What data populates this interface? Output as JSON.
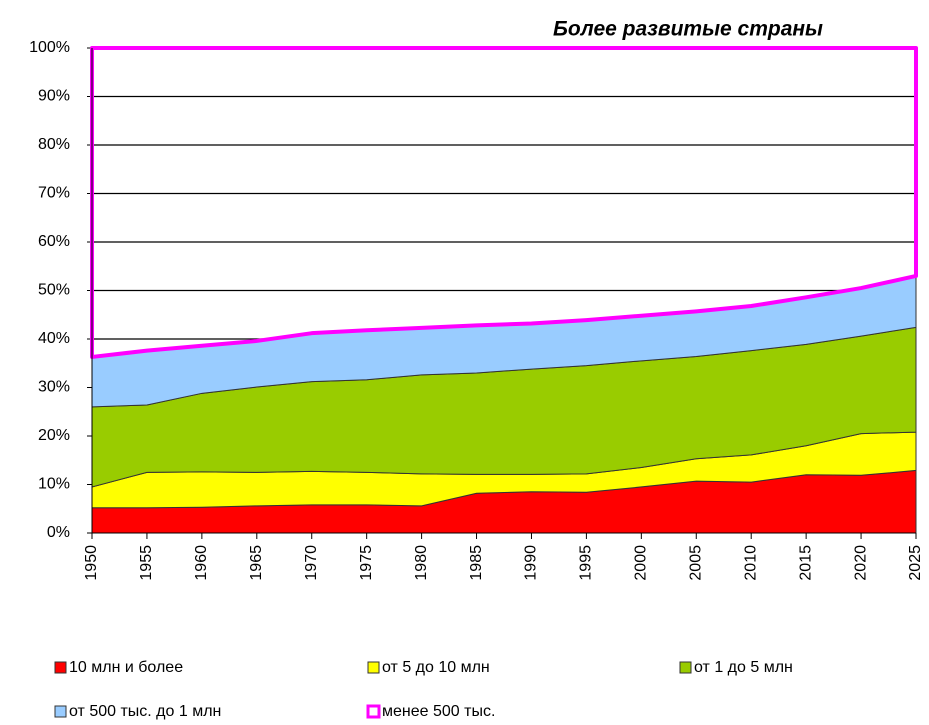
{
  "chart_data": {
    "type": "stacked_area_100",
    "title": "Более развитые страны",
    "categories": [
      "1950",
      "1955",
      "1960",
      "1965",
      "1970",
      "1975",
      "1980",
      "1985",
      "1990",
      "1995",
      "2000",
      "2005",
      "2010",
      "2015",
      "2020",
      "2025"
    ],
    "series": [
      {
        "name": "10 млн и более",
        "color": "#ff0000",
        "values": [
          5.2,
          5.2,
          5.3,
          5.6,
          5.8,
          5.8,
          5.6,
          8.2,
          8.5,
          8.4,
          9.5,
          10.7,
          10.5,
          12,
          11.9,
          12.9
        ]
      },
      {
        "name": "от 5 до 10 млн",
        "color": "#ffff00",
        "values": [
          4.3,
          7.3,
          7.3,
          6.9,
          6.9,
          6.7,
          6.6,
          3.9,
          3.6,
          3.8,
          4.0,
          4.6,
          5.6,
          6.0,
          8.6,
          7.9
        ]
      },
      {
        "name": "от 1 до 5 млн",
        "color": "#99cc00",
        "values": [
          16.5,
          13.9,
          16.2,
          17.6,
          18.5,
          19.1,
          20.4,
          20.9,
          21.7,
          22.3,
          22.0,
          21.1,
          21.5,
          20.9,
          20.1,
          21.6
        ]
      },
      {
        "name": "от 500 тыс. до 1 млн",
        "color": "#99ccff",
        "values": [
          10.3,
          11.2,
          9.8,
          9.5,
          10,
          10.2,
          9.7,
          9.8,
          9.4,
          9.4,
          9.3,
          9.3,
          9.2,
          9.7,
          9.9,
          10.6
        ]
      },
      {
        "name": "менее 500 тыс.",
        "color": "#ff00ff",
        "fill": "#ffffff",
        "values": [
          63.7,
          62.4,
          61.4,
          60.4,
          58.8,
          58.2,
          57.7,
          57.2,
          56.8,
          56.1,
          55.2,
          54.3,
          53.2,
          51.4,
          49.5,
          47
        ]
      }
    ],
    "ylim": [
      0,
      100
    ],
    "yticks": [
      {
        "value": 0,
        "label": "0%"
      },
      {
        "value": 10,
        "label": "10%"
      },
      {
        "value": 20,
        "label": "20%"
      },
      {
        "value": 30,
        "label": "30%"
      },
      {
        "value": 40,
        "label": "40%"
      },
      {
        "value": 50,
        "label": "50%"
      },
      {
        "value": 60,
        "label": "60%"
      },
      {
        "value": 70,
        "label": "70%"
      },
      {
        "value": 80,
        "label": "80%"
      },
      {
        "value": 90,
        "label": "90%"
      },
      {
        "value": 100,
        "label": "100%"
      }
    ],
    "grid": true
  }
}
